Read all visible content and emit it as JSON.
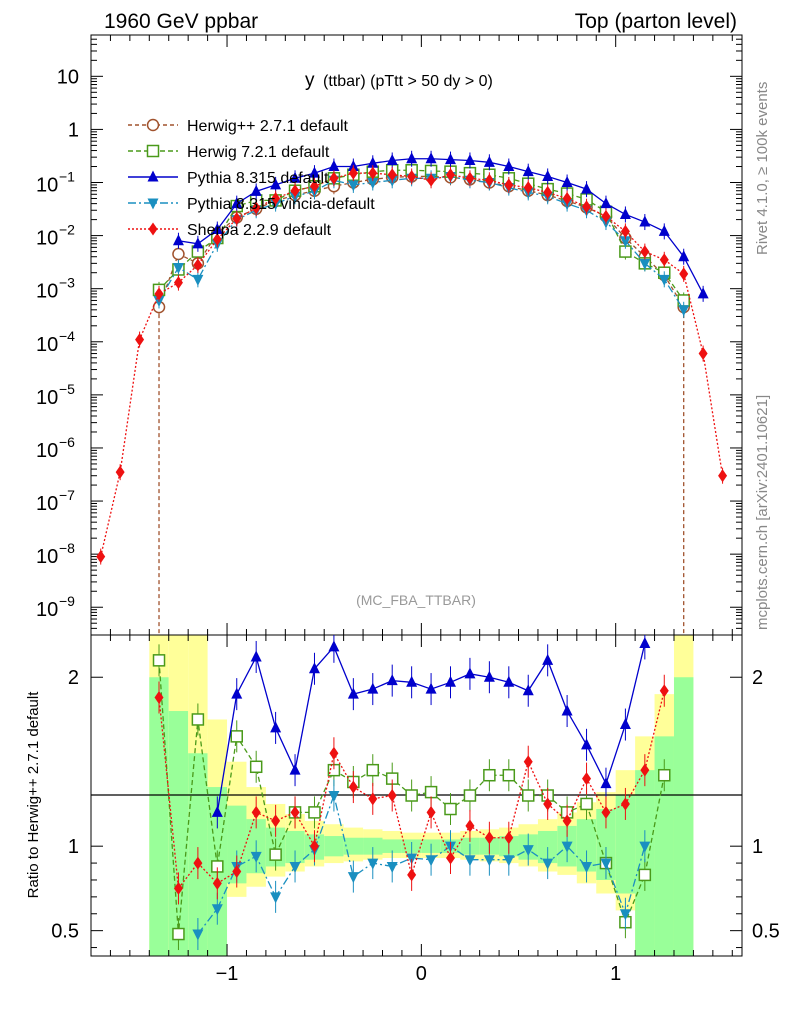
{
  "header": {
    "left": "1960 GeV ppbar",
    "right": "Top (parton level)"
  },
  "side_labels": {
    "top": "Rivet 4.1.0, ≥ 100k events",
    "bottom": "mcplots.cern.ch [arXiv:2401.10621]"
  },
  "chart_data": [
    {
      "type": "line",
      "panel": "main",
      "title_main": "y",
      "title_sub": "(ttbar) (pTtt > 50 dy > 0)",
      "watermark": "(MC_FBA_TTBAR)",
      "xlabel": "",
      "ylabel": "",
      "xlim": [
        -1.7,
        1.65
      ],
      "ylim": [
        3e-10,
        60
      ],
      "yscale": "log",
      "xticks": [
        -1,
        0,
        1
      ],
      "yticks": [
        {
          "value": 10,
          "label": "10"
        },
        {
          "value": 1,
          "label": "1"
        },
        {
          "value": 0.1,
          "base": "10",
          "exp": "−1"
        },
        {
          "value": 0.01,
          "base": "10",
          "exp": "−2"
        },
        {
          "value": 0.001,
          "base": "10",
          "exp": "−3"
        },
        {
          "value": 0.0001,
          "base": "10",
          "exp": "−4"
        },
        {
          "value": 1e-05,
          "base": "10",
          "exp": "−5"
        },
        {
          "value": 1e-06,
          "base": "10",
          "exp": "−6"
        },
        {
          "value": 1e-07,
          "base": "10",
          "exp": "−7"
        },
        {
          "value": 1e-08,
          "base": "10",
          "exp": "−8"
        },
        {
          "value": 1e-09,
          "base": "10",
          "exp": "−9"
        }
      ],
      "series": [
        {
          "name": "Herwig++ 2.7.1 default",
          "color": "#a0522d",
          "marker": "circle-open",
          "dash": "4,3",
          "x": [
            -1.35,
            -1.25,
            -1.15,
            -1.05,
            -0.95,
            -0.85,
            -0.75,
            -0.65,
            -0.55,
            -0.45,
            -0.35,
            -0.25,
            -0.15,
            -0.05,
            0.05,
            0.15,
            0.25,
            0.35,
            0.45,
            0.55,
            0.65,
            0.75,
            0.85,
            0.95,
            1.05,
            1.15,
            1.25,
            1.35
          ],
          "y": [
            0.00045,
            0.0045,
            0.003,
            0.011,
            0.022,
            0.032,
            0.045,
            0.058,
            0.07,
            0.085,
            0.1,
            0.115,
            0.125,
            0.13,
            0.13,
            0.125,
            0.115,
            0.1,
            0.085,
            0.07,
            0.058,
            0.045,
            0.034,
            0.023,
            0.009,
            0.004,
            0.0018,
            0.00045
          ],
          "drop_x": [
            -1.35,
            1.35
          ]
        },
        {
          "name": "Herwig 7.2.1 default",
          "color": "#4a9a1a",
          "marker": "square-open",
          "dash": "5,3",
          "x": [
            -1.35,
            -1.25,
            -1.15,
            -1.05,
            -0.95,
            -0.85,
            -0.75,
            -0.65,
            -0.55,
            -0.45,
            -0.35,
            -0.25,
            -0.15,
            -0.05,
            0.05,
            0.15,
            0.25,
            0.35,
            0.45,
            0.55,
            0.65,
            0.75,
            0.85,
            0.95,
            1.05,
            1.15,
            1.25,
            1.35
          ],
          "y": [
            0.00095,
            0.0023,
            0.005,
            0.009,
            0.036,
            0.046,
            0.046,
            0.07,
            0.085,
            0.12,
            0.14,
            0.16,
            0.17,
            0.17,
            0.165,
            0.16,
            0.15,
            0.14,
            0.12,
            0.095,
            0.075,
            0.062,
            0.048,
            0.028,
            0.005,
            0.003,
            0.002,
            0.0006
          ]
        },
        {
          "name": "Pythia 8.315 default",
          "color": "#0000cc",
          "marker": "triangle-up",
          "dash": "",
          "x": [
            -1.25,
            -1.15,
            -1.05,
            -0.95,
            -0.85,
            -0.75,
            -0.65,
            -0.55,
            -0.45,
            -0.35,
            -0.25,
            -0.15,
            -0.05,
            0.05,
            0.15,
            0.25,
            0.35,
            0.45,
            0.55,
            0.65,
            0.75,
            0.85,
            0.95,
            1.05,
            1.15,
            1.25,
            1.35,
            1.45
          ],
          "y": [
            0.008,
            0.007,
            0.013,
            0.04,
            0.068,
            0.09,
            0.12,
            0.15,
            0.2,
            0.2,
            0.23,
            0.26,
            0.28,
            0.28,
            0.27,
            0.26,
            0.24,
            0.2,
            0.16,
            0.13,
            0.1,
            0.075,
            0.04,
            0.025,
            0.018,
            0.012,
            0.004,
            0.0008
          ]
        },
        {
          "name": "Pythia 8.315 vincia-default",
          "color": "#1a8fc0",
          "marker": "triangle-down",
          "dash": "8,3,2,3",
          "x": [
            -1.35,
            -1.25,
            -1.15,
            -1.05,
            -0.95,
            -0.85,
            -0.75,
            -0.65,
            -0.55,
            -0.45,
            -0.35,
            -0.25,
            -0.15,
            -0.05,
            0.05,
            0.15,
            0.25,
            0.35,
            0.45,
            0.55,
            0.65,
            0.75,
            0.85,
            0.95,
            1.05,
            1.15,
            1.25,
            1.35
          ],
          "y": [
            0.0006,
            0.0025,
            0.0015,
            0.007,
            0.02,
            0.03,
            0.04,
            0.055,
            0.068,
            0.11,
            0.09,
            0.1,
            0.11,
            0.12,
            0.12,
            0.13,
            0.11,
            0.1,
            0.08,
            0.065,
            0.055,
            0.04,
            0.03,
            0.018,
            0.008,
            0.003,
            0.0015,
            0.0004
          ]
        },
        {
          "name": "Sherpa 2.2.9 default",
          "color": "#ee1111",
          "marker": "diamond",
          "dash": "2,2",
          "x": [
            -1.65,
            -1.55,
            -1.45,
            -1.35,
            -1.25,
            -1.15,
            -1.05,
            -0.95,
            -0.85,
            -0.75,
            -0.65,
            -0.55,
            -0.45,
            -0.35,
            -0.25,
            -0.15,
            -0.05,
            0.05,
            0.15,
            0.25,
            0.35,
            0.45,
            0.55,
            0.65,
            0.75,
            0.85,
            0.95,
            1.05,
            1.15,
            1.25,
            1.35,
            1.45,
            1.55
          ],
          "y": [
            9e-09,
            3.5e-07,
            0.00011,
            0.0008,
            0.0013,
            0.0028,
            0.0085,
            0.021,
            0.033,
            0.05,
            0.07,
            0.085,
            0.12,
            0.15,
            0.15,
            0.14,
            0.13,
            0.11,
            0.14,
            0.12,
            0.11,
            0.09,
            0.08,
            0.065,
            0.05,
            0.035,
            0.023,
            0.012,
            0.005,
            0.0035,
            0.0019,
            6e-05,
            3e-07
          ]
        }
      ]
    },
    {
      "type": "line",
      "panel": "ratio",
      "ylabel": "Ratio to Herwig++ 2.7.1 default",
      "xlim": [
        -1.7,
        1.65
      ],
      "ylim": [
        0.35,
        2.25
      ],
      "yticks": [
        {
          "value": 0.5,
          "label": "0.5"
        },
        {
          "value": 1,
          "label": "1"
        },
        {
          "value": 2,
          "label": "2"
        }
      ],
      "xticks": [
        {
          "value": -1,
          "label": "−1"
        },
        {
          "value": 0,
          "label": "0"
        },
        {
          "value": 1,
          "label": "1"
        }
      ],
      "bands": {
        "x_edges": [
          -1.4,
          -1.3,
          -1.2,
          -1.1,
          -1.0,
          -0.9,
          -0.8,
          -0.7,
          -0.6,
          -0.5,
          -0.4,
          -0.3,
          -0.2,
          -0.1,
          0.0,
          0.1,
          0.2,
          0.3,
          0.4,
          0.5,
          0.6,
          0.7,
          0.8,
          0.9,
          1.0,
          1.1,
          1.2,
          1.3,
          1.4
        ],
        "yellow_lo": [
          0.35,
          0.35,
          0.35,
          0.35,
          0.7,
          0.76,
          0.82,
          0.85,
          0.88,
          0.9,
          0.91,
          0.92,
          0.93,
          0.93,
          0.93,
          0.93,
          0.92,
          0.91,
          0.9,
          0.88,
          0.85,
          0.83,
          0.78,
          0.72,
          0.62,
          0.35,
          0.35,
          0.35
        ],
        "yellow_hi": [
          2.25,
          2.25,
          2.25,
          1.75,
          1.5,
          1.35,
          1.25,
          1.19,
          1.15,
          1.13,
          1.11,
          1.1,
          1.09,
          1.08,
          1.08,
          1.08,
          1.09,
          1.1,
          1.11,
          1.13,
          1.16,
          1.2,
          1.26,
          1.32,
          1.45,
          1.65,
          1.9,
          2.25
        ],
        "green_lo": [
          0.35,
          0.35,
          0.35,
          0.35,
          0.78,
          0.84,
          0.88,
          0.9,
          0.92,
          0.94,
          0.95,
          0.95,
          0.96,
          0.96,
          0.96,
          0.96,
          0.95,
          0.95,
          0.94,
          0.92,
          0.9,
          0.88,
          0.85,
          0.8,
          0.72,
          0.35,
          0.35,
          0.35
        ],
        "green_hi": [
          2.0,
          1.8,
          1.55,
          1.35,
          1.24,
          1.16,
          1.11,
          1.09,
          1.07,
          1.06,
          1.05,
          1.05,
          1.04,
          1.04,
          1.04,
          1.04,
          1.05,
          1.05,
          1.06,
          1.07,
          1.09,
          1.12,
          1.16,
          1.22,
          1.3,
          1.45,
          1.65,
          2.0
        ]
      },
      "series": [
        {
          "name": "Herwig 7.2.1 default",
          "color": "#4a9a1a",
          "marker": "square-open",
          "dash": "5,3",
          "x": [
            -1.35,
            -1.25,
            -1.15,
            -1.05,
            -0.95,
            -0.85,
            -0.75,
            -0.65,
            -0.55,
            -0.45,
            -0.35,
            -0.25,
            -0.15,
            -0.05,
            0.05,
            0.15,
            0.25,
            0.35,
            0.45,
            0.55,
            0.65,
            0.75,
            0.85,
            0.95,
            1.05,
            1.15,
            1.25
          ],
          "y": [
            2.1,
            0.48,
            1.75,
            0.88,
            1.65,
            1.47,
            0.95,
            1.2,
            1.2,
            1.45,
            1.38,
            1.45,
            1.4,
            1.3,
            1.32,
            1.22,
            1.3,
            1.42,
            1.42,
            1.3,
            1.3,
            1.2,
            1.25,
            0.9,
            0.55,
            0.83,
            1.42
          ]
        },
        {
          "name": "Pythia 8.315 default",
          "color": "#0000cc",
          "marker": "triangle-up",
          "dash": "",
          "x": [
            -1.05,
            -0.95,
            -0.85,
            -0.75,
            -0.65,
            -0.55,
            -0.45,
            -0.35,
            -0.25,
            -0.15,
            -0.05,
            0.05,
            0.15,
            0.25,
            0.35,
            0.45,
            0.55,
            0.65,
            0.75,
            0.85,
            0.95,
            1.05,
            1.15
          ],
          "y": [
            1.2,
            1.9,
            2.12,
            1.7,
            1.45,
            2.05,
            2.18,
            1.9,
            1.93,
            1.98,
            1.97,
            1.93,
            1.97,
            2.02,
            2.0,
            1.97,
            1.92,
            2.1,
            1.8,
            1.6,
            1.37,
            1.72,
            2.2
          ]
        },
        {
          "name": "Pythia 8.315 vincia-default",
          "color": "#1a8fc0",
          "marker": "triangle-down",
          "dash": "8,3,2,3",
          "x": [
            -1.15,
            -1.05,
            -0.95,
            -0.85,
            -0.75,
            -0.65,
            -0.55,
            -0.45,
            -0.35,
            -0.25,
            -0.15,
            -0.05,
            0.05,
            0.15,
            0.25,
            0.35,
            0.45,
            0.55,
            0.65,
            0.75,
            0.85,
            0.95,
            1.05,
            1.15
          ],
          "y": [
            0.48,
            0.63,
            0.88,
            0.94,
            0.7,
            0.88,
            0.98,
            1.3,
            0.82,
            0.9,
            0.88,
            0.93,
            0.92,
            1.0,
            0.92,
            0.92,
            0.92,
            0.98,
            0.9,
            1.0,
            0.88,
            0.9,
            0.6,
            1.0
          ]
        },
        {
          "name": "Sherpa 2.2.9 default",
          "color": "#ee1111",
          "marker": "diamond",
          "dash": "2,2",
          "x": [
            -1.35,
            -1.25,
            -1.15,
            -1.05,
            -0.95,
            -0.85,
            -0.75,
            -0.65,
            -0.55,
            -0.45,
            -0.35,
            -0.25,
            -0.15,
            -0.05,
            0.05,
            0.15,
            0.25,
            0.35,
            0.45,
            0.55,
            0.65,
            0.75,
            0.85,
            0.95,
            1.05,
            1.15,
            1.25
          ],
          "y": [
            1.88,
            0.75,
            0.9,
            0.78,
            0.85,
            1.2,
            1.15,
            1.2,
            1.0,
            1.55,
            1.35,
            1.28,
            1.3,
            0.83,
            1.2,
            0.93,
            1.12,
            1.05,
            1.05,
            1.5,
            1.25,
            1.15,
            1.4,
            1.2,
            1.25,
            1.45,
            1.92
          ]
        }
      ]
    }
  ]
}
